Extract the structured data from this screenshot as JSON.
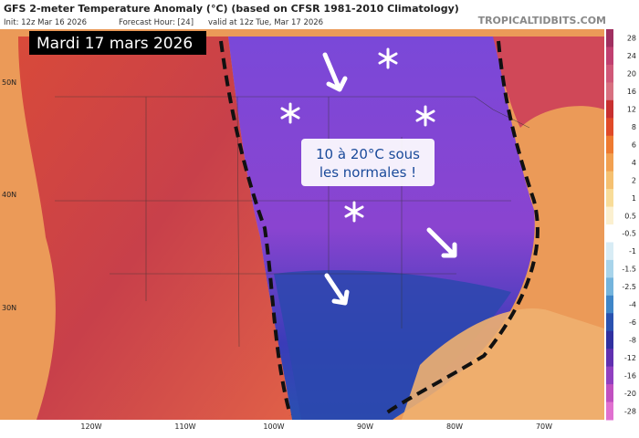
{
  "header": {
    "title": "GFS 2-meter Temperature Anomaly (°C) (based on CFSR 1981-2010 Climatology)",
    "init": "Init: 12z Mar 16 2026",
    "forecast_hour": "Forecast Hour: [24]",
    "valid": "valid at 12z Tue, Mar 17 2026",
    "site": "TROPICALTIDBITS.COM"
  },
  "map": {
    "date_label": "Mardi 17 mars 2026",
    "annotation": [
      "10 à 20°C sous",
      "les normales !"
    ],
    "lat_labels": [
      "50N",
      "40N",
      "30N"
    ],
    "lon_labels": [
      "120W",
      "110W",
      "100W",
      "90W",
      "80W",
      "70W"
    ]
  },
  "colorbar": {
    "labels": [
      "28",
      "24",
      "20",
      "16",
      "12",
      "8",
      "6",
      "4",
      "2",
      "1",
      "0.5",
      "-0.5",
      "-1",
      "-1.5",
      "-2.5",
      "-4",
      "-6",
      "-8",
      "-12",
      "-16",
      "-20",
      "-28"
    ],
    "colors": [
      "#a03060",
      "#c04070",
      "#d05878",
      "#d87080",
      "#c83030",
      "#e04a28",
      "#ee7a30",
      "#f2a050",
      "#f5c070",
      "#f8dc98",
      "#fbf0d0",
      "#ffffff",
      "#d8ecf5",
      "#a8d4ea",
      "#74b4dc",
      "#3f86c8",
      "#2a52b0",
      "#3030a0",
      "#6030b0",
      "#9040c0",
      "#c050c0",
      "#e070d0"
    ]
  }
}
